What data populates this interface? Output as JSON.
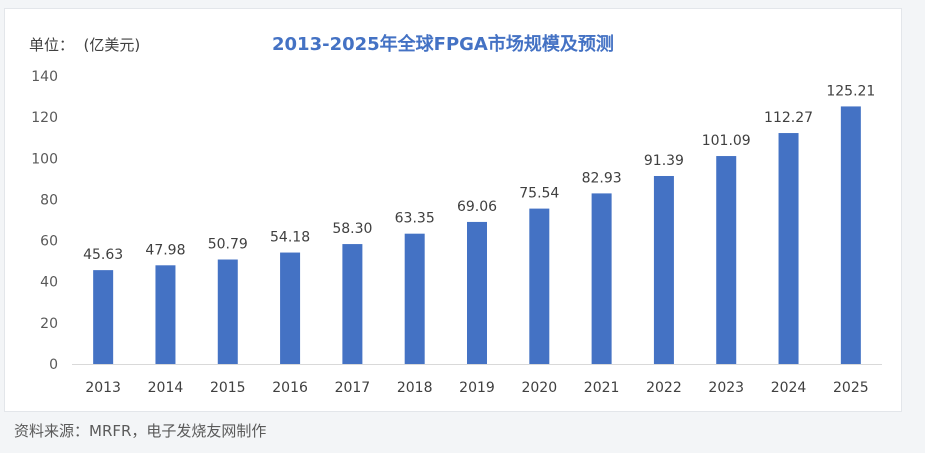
{
  "chart_data": {
    "type": "bar",
    "title": "2013-2025年全球FPGA市场规模及预测",
    "unit_label": "单位：  (亿美元)",
    "categories": [
      "2013",
      "2014",
      "2015",
      "2016",
      "2017",
      "2018",
      "2019",
      "2020",
      "2021",
      "2022",
      "2023",
      "2024",
      "2025"
    ],
    "values": [
      45.63,
      47.98,
      50.79,
      54.18,
      58.3,
      63.35,
      69.06,
      75.54,
      82.93,
      91.39,
      101.09,
      112.27,
      125.21
    ],
    "value_labels": [
      "45.63",
      "47.98",
      "50.79",
      "54.18",
      "58.30",
      "63.35",
      "69.06",
      "75.54",
      "82.93",
      "91.39",
      "101.09",
      "112.27",
      "125.21"
    ],
    "yticks": [
      "0",
      "20",
      "40",
      "60",
      "80",
      "100",
      "120",
      "140"
    ],
    "ylim": [
      0,
      140
    ],
    "grid": false,
    "bar_color": "#4472c4"
  },
  "source": "资料来源：MRFR，电子发烧友网制作"
}
